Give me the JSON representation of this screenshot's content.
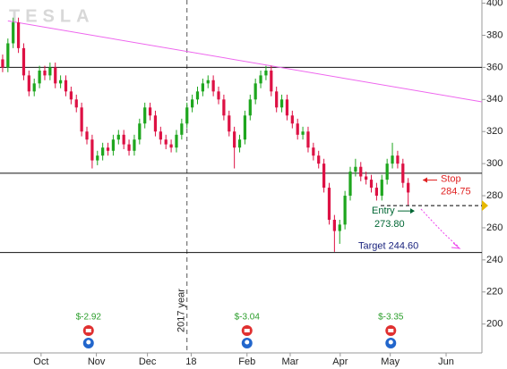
{
  "chart_data": {
    "type": "candlestick",
    "title": "TESLA",
    "x": [
      0,
      1,
      2,
      3,
      4,
      5,
      6,
      7,
      8,
      9,
      10,
      11,
      12,
      13,
      14,
      15,
      16,
      17,
      18,
      19,
      20,
      21,
      22,
      23,
      24,
      25,
      26,
      27,
      28,
      29,
      30,
      31,
      32,
      33,
      34,
      35,
      36,
      37,
      38,
      39,
      40,
      41,
      42,
      43,
      44,
      45,
      46,
      47,
      48,
      49,
      50,
      51,
      52,
      53,
      54,
      55,
      56,
      57,
      58,
      59,
      60,
      61,
      62,
      63,
      64,
      65,
      66,
      67,
      68,
      69,
      70,
      71,
      72,
      73,
      74,
      75,
      76,
      77
    ],
    "open": [
      365,
      360,
      375,
      388,
      372,
      355,
      345,
      350,
      358,
      355,
      360,
      350,
      352,
      345,
      340,
      335,
      320,
      315,
      302,
      305,
      310,
      308,
      315,
      318,
      312,
      308,
      315,
      325,
      335,
      330,
      320,
      315,
      312,
      310,
      318,
      325,
      335,
      340,
      345,
      350,
      352,
      345,
      340,
      330,
      320,
      310,
      315,
      330,
      340,
      350,
      355,
      358,
      345,
      335,
      340,
      330,
      325,
      318,
      320,
      310,
      305,
      300,
      285,
      265,
      258,
      262,
      280,
      295,
      298,
      292,
      290,
      285,
      280,
      290,
      300,
      305,
      300,
      288
    ],
    "high": [
      368,
      378,
      391,
      391,
      375,
      358,
      353,
      361,
      361,
      363,
      363,
      355,
      355,
      348,
      343,
      338,
      323,
      318,
      308,
      313,
      313,
      318,
      321,
      321,
      315,
      318,
      328,
      338,
      338,
      333,
      323,
      318,
      315,
      321,
      328,
      338,
      343,
      348,
      353,
      355,
      355,
      348,
      343,
      333,
      323,
      318,
      333,
      343,
      353,
      358,
      361,
      361,
      348,
      343,
      343,
      333,
      328,
      323,
      323,
      313,
      308,
      303,
      288,
      268,
      265,
      283,
      298,
      303,
      301,
      295,
      293,
      288,
      293,
      303,
      313,
      308,
      303,
      291
    ],
    "low": [
      357,
      357,
      372,
      369,
      352,
      342,
      342,
      347,
      352,
      352,
      347,
      347,
      342,
      337,
      332,
      317,
      312,
      297,
      299,
      302,
      305,
      305,
      312,
      309,
      305,
      305,
      312,
      322,
      327,
      317,
      312,
      309,
      307,
      307,
      315,
      322,
      332,
      337,
      342,
      347,
      342,
      337,
      327,
      317,
      297,
      307,
      312,
      327,
      337,
      347,
      352,
      342,
      332,
      332,
      327,
      322,
      315,
      315,
      307,
      302,
      297,
      282,
      262,
      245,
      250,
      259,
      277,
      292,
      289,
      287,
      282,
      277,
      277,
      287,
      297,
      297,
      285,
      274
    ],
    "close": [
      360,
      375,
      388,
      372,
      355,
      345,
      350,
      358,
      355,
      360,
      350,
      352,
      345,
      340,
      335,
      320,
      315,
      302,
      305,
      310,
      308,
      315,
      318,
      312,
      308,
      315,
      325,
      335,
      330,
      320,
      315,
      312,
      310,
      318,
      325,
      335,
      340,
      345,
      350,
      352,
      345,
      340,
      330,
      320,
      310,
      315,
      330,
      340,
      350,
      355,
      358,
      345,
      335,
      340,
      330,
      325,
      318,
      320,
      310,
      305,
      300,
      285,
      265,
      258,
      262,
      280,
      295,
      298,
      292,
      290,
      285,
      280,
      290,
      300,
      305,
      300,
      288,
      282
    ],
    "up_color": "#1ea61e",
    "down_color": "#dd1144",
    "xlim": [
      -0.5,
      91
    ],
    "ylim": [
      182,
      402
    ],
    "xticks": [
      {
        "value": 7.3,
        "label": "Oct"
      },
      {
        "value": 17.8,
        "label": "Nov"
      },
      {
        "value": 27.5,
        "label": "Dec"
      },
      {
        "value": 35.8,
        "label": "18"
      },
      {
        "value": 46.4,
        "label": "Feb"
      },
      {
        "value": 54.6,
        "label": "Mar"
      },
      {
        "value": 64.1,
        "label": "Apr"
      },
      {
        "value": 73.6,
        "label": "May"
      },
      {
        "value": 84.2,
        "label": "Jun"
      }
    ],
    "yticks": [
      200,
      220,
      240,
      260,
      280,
      300,
      320,
      340,
      360,
      380,
      400
    ],
    "levels": [
      {
        "value": 360
      },
      {
        "value": 294
      },
      {
        "value": 244.6,
        "label": "Target 244.60"
      }
    ],
    "trendline": {
      "x": [
        1,
        91
      ],
      "y": [
        389,
        338.5
      ],
      "color": "#ee66ee"
    },
    "annotations": [
      {
        "text": "Stop",
        "value": 284.75,
        "value_label": "284.75",
        "color": "#e02020"
      },
      {
        "text": "Entry",
        "value": 273.8,
        "value_label": "273.80",
        "color": "#006633"
      }
    ],
    "year_divider": {
      "x": 35.0,
      "label": "2017 year"
    },
    "events": [
      {
        "x": 16.3,
        "label": "$-2.92"
      },
      {
        "x": 46.4,
        "label": "$-3.04"
      },
      {
        "x": 73.7,
        "label": "$-3.35"
      }
    ]
  }
}
